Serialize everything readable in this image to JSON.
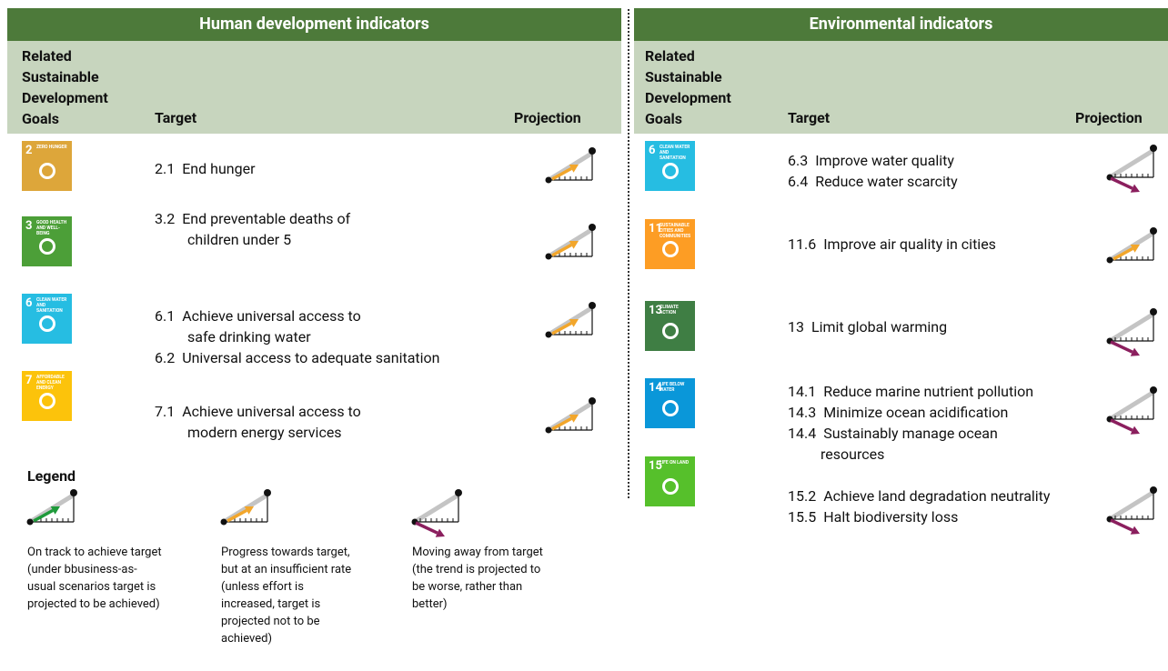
{
  "panels": [
    {
      "title": "Human development indicators",
      "columns": {
        "goals": "Related Sustainable Development Goals",
        "target": "Target",
        "projection": "Projection"
      },
      "rows": [
        {
          "goal": {
            "number": "2",
            "name": "ZERO HUNGER",
            "color": "#dda63a"
          },
          "targets": [
            {
              "code": "2.1",
              "lines": [
                "End hunger"
              ]
            }
          ],
          "projection": {
            "color": "#f2a62b",
            "trend": "up"
          }
        },
        {
          "goal": {
            "number": "3",
            "name": "GOOD HEALTH AND WELL-BEING",
            "color": "#4c9f38"
          },
          "targets": [
            {
              "code": "3.2",
              "lines": [
                "End preventable deaths of",
                "children under 5"
              ]
            }
          ],
          "projection": {
            "color": "#f2a62b",
            "trend": "up"
          }
        },
        {
          "goal": {
            "number": "6",
            "name": "CLEAN WATER AND SANITATION",
            "color": "#26bde2"
          },
          "targets": [
            {
              "code": "6.1",
              "lines": [
                "Achieve universal access to",
                "safe drinking water"
              ]
            },
            {
              "code": "6.2",
              "lines": [
                "Universal access to adequate sanitation"
              ]
            }
          ],
          "projection": {
            "color": "#f2a62b",
            "trend": "up"
          }
        },
        {
          "goal": {
            "number": "7",
            "name": "AFFORDABLE AND CLEAN ENERGY",
            "color": "#fcc30b"
          },
          "targets": [
            {
              "code": "7.1",
              "lines": [
                "Achieve universal access to",
                "modern energy services"
              ]
            }
          ],
          "projection": {
            "color": "#f2a62b",
            "trend": "up"
          }
        }
      ]
    },
    {
      "title": "Environmental indicators",
      "columns": {
        "goals": "Related Sustainable Development Goals",
        "target": "Target",
        "projection": "Projection"
      },
      "rows": [
        {
          "goal": {
            "number": "6",
            "name": "CLEAN WATER AND SANITATION",
            "color": "#26bde2"
          },
          "targets": [
            {
              "code": "6.3",
              "lines": [
                "Improve water quality"
              ]
            },
            {
              "code": "6.4",
              "lines": [
                "Reduce water scarcity"
              ]
            }
          ],
          "projection": {
            "color": "#8b1f5e",
            "trend": "down"
          }
        },
        {
          "goal": {
            "number": "11",
            "name": "SUSTAINABLE CITIES AND COMMUNITIES",
            "color": "#fd9d24"
          },
          "targets": [
            {
              "code": "11.6",
              "lines": [
                "Improve air quality in cities"
              ]
            }
          ],
          "projection": {
            "color": "#f2a62b",
            "trend": "up"
          }
        },
        {
          "goal": {
            "number": "13",
            "name": "CLIMATE ACTION",
            "color": "#3f7e44"
          },
          "targets": [
            {
              "code": "13",
              "lines": [
                "Limit global warming"
              ]
            }
          ],
          "projection": {
            "color": "#8b1f5e",
            "trend": "down"
          }
        },
        {
          "goal": {
            "number": "14",
            "name": "LIFE BELOW WATER",
            "color": "#0a97d9"
          },
          "targets": [
            {
              "code": "14.1",
              "lines": [
                "Reduce marine nutrient pollution"
              ]
            },
            {
              "code": "14.3",
              "lines": [
                "Minimize ocean acidification"
              ]
            },
            {
              "code": "14.4",
              "lines": [
                "Sustainably manage ocean",
                "resources"
              ]
            }
          ],
          "projection": {
            "color": "#8b1f5e",
            "trend": "down"
          }
        },
        {
          "goal": {
            "number": "15",
            "name": "LIFE ON LAND",
            "color": "#56c02b"
          },
          "targets": [
            {
              "code": "15.2",
              "lines": [
                "Achieve land degradation neutrality"
              ]
            },
            {
              "code": "15.5",
              "lines": [
                "Halt biodiversity loss"
              ]
            }
          ],
          "projection": {
            "color": "#8b1f5e",
            "trend": "down"
          }
        }
      ]
    }
  ],
  "legend": {
    "title": "Legend",
    "items": [
      {
        "text": "On track to achieve target (under bbusiness-as-usual scenarios target is projected to be achieved)",
        "color": "#1e9a3a",
        "trend": "up"
      },
      {
        "text": "Progress towards target, but at an insufficient rate (unless effort is increased, target is projected not to be achieved)",
        "color": "#f2a62b",
        "trend": "up"
      },
      {
        "text": "Moving away from target (the trend is projected to be worse, rather than better)",
        "color": "#8b1f5e",
        "trend": "down"
      }
    ]
  }
}
